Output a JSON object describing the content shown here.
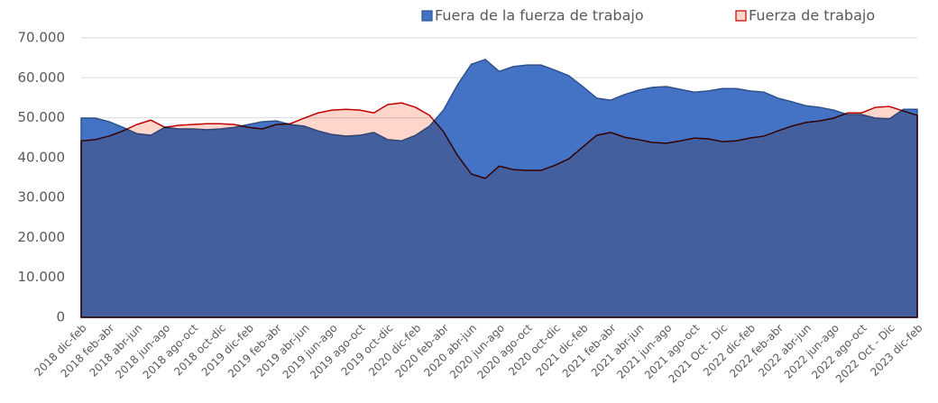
{
  "chart_data": {
    "type": "area",
    "categories": [
      "2018 dic-feb",
      null,
      "2018 feb-abr",
      null,
      "2018 abr-jun",
      null,
      "2018 jun-ago",
      null,
      "2018 ago-oct",
      null,
      "2018 oct-dic",
      null,
      "2019 dic-feb",
      null,
      "2019 feb-abr",
      null,
      "2019 abr-jun",
      null,
      "2019 jun-ago",
      null,
      "2019 ago-oct",
      null,
      "2019 oct-dic",
      null,
      "2020 dic-feb",
      null,
      "2020 feb-abr",
      null,
      "2020 abr-jun",
      null,
      "2020 jun-ago",
      null,
      "2020 ago-oct",
      null,
      "2020 oct-dic",
      null,
      "2021 dic-feb",
      null,
      "2021 feb-abr",
      null,
      "2021 abr-jun",
      null,
      "2021 jun-ago",
      null,
      "2021 ago-oct",
      null,
      "2021 Oct - Dic",
      null,
      "2022 dic-feb",
      null,
      "2022 feb-abr",
      null,
      "2022 abr-jun",
      null,
      "2022 jun-ago",
      null,
      "2022 ago-oct",
      null,
      "2022 Oct - Dic",
      null,
      "2023 dic-feb"
    ],
    "series": [
      {
        "name": "Fuera de la fuerza de trabajo",
        "color": "#4472c4",
        "line_color": "#2f528f",
        "values": [
          49900,
          49900,
          49000,
          47600,
          46000,
          45600,
          47600,
          47200,
          47200,
          47000,
          47200,
          47600,
          48300,
          49000,
          49200,
          48300,
          47900,
          46700,
          45800,
          45400,
          45600,
          46300,
          44500,
          44200,
          45600,
          47900,
          51900,
          58200,
          63400,
          64600,
          61600,
          62800,
          63200,
          63200,
          61900,
          60500,
          57800,
          54900,
          54400,
          55800,
          56900,
          57600,
          57800,
          57100,
          56400,
          56700,
          57300,
          57300,
          56700,
          56400,
          54900,
          54000,
          53000,
          52600,
          51900,
          50800,
          50800,
          49900,
          49700,
          52100,
          52100
        ]
      },
      {
        "name": "Fuerza de trabajo",
        "color": "#ffd5cc",
        "line_color": "#c00000",
        "values": [
          44200,
          44500,
          45400,
          46700,
          48300,
          49400,
          47600,
          48100,
          48300,
          48500,
          48500,
          48300,
          47600,
          47200,
          48300,
          48500,
          49900,
          51200,
          51900,
          52100,
          51900,
          51200,
          53300,
          53700,
          52600,
          50600,
          46500,
          40600,
          35900,
          34800,
          37900,
          37000,
          36800,
          36800,
          38100,
          39700,
          42700,
          45600,
          46300,
          45100,
          44500,
          43800,
          43600,
          44200,
          44900,
          44700,
          44000,
          44200,
          44900,
          45400,
          46700,
          47900,
          48800,
          49200,
          49900,
          51200,
          51200,
          52600,
          52800,
          51700,
          50600
        ]
      }
    ],
    "ylim": [
      0,
      70000
    ],
    "yticks": [
      0,
      {
        "value": 10000,
        "label": "10.000"
      },
      {
        "value": 20000,
        "label": "20.000"
      },
      {
        "value": 30000,
        "label": "30.000"
      },
      {
        "value": 40000,
        "label": "40.000"
      },
      {
        "value": 50000,
        "label": "50.000"
      },
      {
        "value": 60000,
        "label": "60.000"
      },
      {
        "value": 70000,
        "label": "70.000"
      }
    ],
    "grid": true,
    "legend": "top"
  }
}
